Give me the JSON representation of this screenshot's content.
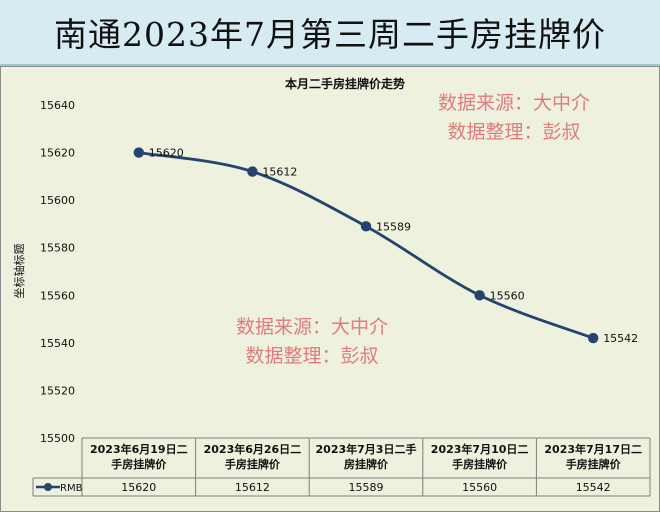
{
  "banner": {
    "title": "南通2023年7月第三周二手房挂牌价"
  },
  "watermark": {
    "line1": "数据来源：大中介",
    "line2": "数据整理：彭叔"
  },
  "chart_data": {
    "type": "line",
    "title": "本月二手房挂牌价走势",
    "ylabel": "坐标轴标题",
    "xlabel": "",
    "ylim": [
      15500,
      15640
    ],
    "yticks": [
      15500,
      15520,
      15540,
      15560,
      15580,
      15600,
      15620,
      15640
    ],
    "grid": false,
    "smooth": true,
    "categories": [
      "2023年6月19日二手房挂牌价",
      "2023年6月26日二手房挂牌价",
      "2023年7月3日二手房挂牌价",
      "2023年7月10日二手房挂牌价",
      "2023年7月17日二手房挂牌价"
    ],
    "category_lines": [
      [
        "2023年6月19日二",
        "手房挂牌价"
      ],
      [
        "2023年6月26日二",
        "手房挂牌价"
      ],
      [
        "2023年7月3日二手",
        "房挂牌价"
      ],
      [
        "2023年7月10日二",
        "手房挂牌价"
      ],
      [
        "2023年7月17日二",
        "手房挂牌价"
      ]
    ],
    "series": [
      {
        "name": "RMB",
        "values": [
          15620,
          15612,
          15589,
          15560,
          15542
        ],
        "color": "#22446e"
      }
    ],
    "data_table": true
  }
}
